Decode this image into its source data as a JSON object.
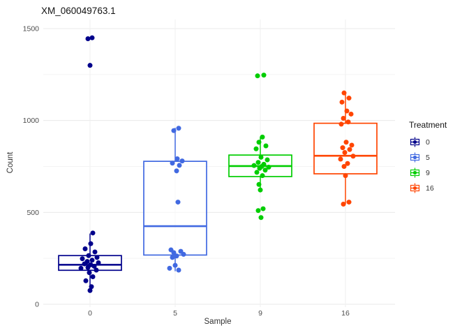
{
  "chart": {
    "title": "XM_060049763.1",
    "xlabel": "Sample",
    "ylabel": "Count"
  },
  "legend": {
    "title": "Treatment",
    "items": [
      {
        "label": "0",
        "color": "#00008B"
      },
      {
        "label": "5",
        "color": "#4169E1"
      },
      {
        "label": "9",
        "color": "#00CD00"
      },
      {
        "label": "16",
        "color": "#FF4500"
      }
    ]
  },
  "chart_data": {
    "type": "boxplot",
    "title": "XM_060049763.1",
    "xlabel": "Sample",
    "ylabel": "Count",
    "categories": [
      "0",
      "5",
      "9",
      "16"
    ],
    "y_ticks": [
      0,
      500,
      1000,
      1500
    ],
    "y_minor_ticks": [
      250,
      750,
      1250
    ],
    "ylim": [
      0,
      1500
    ],
    "grid": "on",
    "legend_position": "right",
    "groups": [
      {
        "name": "0",
        "color": "#00008B",
        "box": {
          "whisker_low": 75,
          "q1": 185,
          "median": 215,
          "q3": 265,
          "whisker_high": 385
        },
        "points": [
          [
            1445,
            -3
          ],
          [
            1450,
            3
          ],
          [
            1300,
            0
          ],
          [
            388,
            4
          ],
          [
            330,
            1
          ],
          [
            302,
            -7
          ],
          [
            285,
            7
          ],
          [
            265,
            -2
          ],
          [
            255,
            10
          ],
          [
            248,
            -11
          ],
          [
            240,
            3
          ],
          [
            233,
            -4
          ],
          [
            226,
            12
          ],
          [
            220,
            -8
          ],
          [
            215,
            1
          ],
          [
            207,
            6
          ],
          [
            200,
            -3
          ],
          [
            196,
            -13
          ],
          [
            186,
            9
          ],
          [
            172,
            -1
          ],
          [
            150,
            4
          ],
          [
            128,
            -6
          ],
          [
            96,
            2
          ],
          [
            75,
            0
          ]
        ]
      },
      {
        "name": "5",
        "color": "#4169E1",
        "box": {
          "whisker_low": 180,
          "q1": 268,
          "median": 425,
          "q3": 778,
          "whisker_high": 960
        },
        "points": [
          [
            958,
            5
          ],
          [
            945,
            -2
          ],
          [
            792,
            3
          ],
          [
            780,
            10
          ],
          [
            768,
            -4
          ],
          [
            756,
            6
          ],
          [
            726,
            2
          ],
          [
            556,
            4
          ],
          [
            296,
            -6
          ],
          [
            288,
            8
          ],
          [
            281,
            -2
          ],
          [
            272,
            12
          ],
          [
            263,
            2
          ],
          [
            255,
            -4
          ],
          [
            212,
            0
          ],
          [
            196,
            -8
          ],
          [
            186,
            5
          ]
        ]
      },
      {
        "name": "9",
        "color": "#00CD00",
        "box": {
          "whisker_low": 622,
          "q1": 695,
          "median": 752,
          "q3": 812,
          "whisker_high": 912
        },
        "points": [
          [
            1243,
            -4
          ],
          [
            1247,
            5
          ],
          [
            910,
            3
          ],
          [
            882,
            -2
          ],
          [
            862,
            8
          ],
          [
            846,
            -6
          ],
          [
            800,
            1
          ],
          [
            786,
            10
          ],
          [
            772,
            -3
          ],
          [
            762,
            5
          ],
          [
            755,
            -9
          ],
          [
            750,
            2
          ],
          [
            746,
            12
          ],
          [
            740,
            -1
          ],
          [
            730,
            7
          ],
          [
            718,
            -5
          ],
          [
            700,
            3
          ],
          [
            652,
            -2
          ],
          [
            622,
            0
          ],
          [
            520,
            4
          ],
          [
            510,
            -3
          ],
          [
            472,
            1
          ]
        ]
      },
      {
        "name": "16",
        "color": "#FF4500",
        "box": {
          "whisker_low": 545,
          "q1": 710,
          "median": 808,
          "q3": 985,
          "whisker_high": 1150
        },
        "points": [
          [
            1150,
            -2
          ],
          [
            1122,
            5
          ],
          [
            1100,
            -5
          ],
          [
            1052,
            2
          ],
          [
            1035,
            8
          ],
          [
            1012,
            -3
          ],
          [
            992,
            4
          ],
          [
            980,
            -6
          ],
          [
            882,
            1
          ],
          [
            866,
            9
          ],
          [
            852,
            -4
          ],
          [
            842,
            6
          ],
          [
            826,
            -1
          ],
          [
            806,
            11
          ],
          [
            790,
            -7
          ],
          [
            766,
            3
          ],
          [
            750,
            -2
          ],
          [
            700,
            0
          ],
          [
            556,
            5
          ],
          [
            545,
            -3
          ]
        ]
      }
    ]
  }
}
